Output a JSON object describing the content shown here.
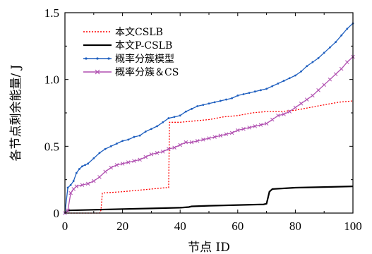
{
  "chart_data": {
    "type": "line",
    "xlabel": "节点 ID",
    "ylabel": "各节点剩余能量/ J",
    "xlim": [
      0,
      100
    ],
    "ylim": [
      0,
      1.5
    ],
    "xticks": [
      0,
      20,
      40,
      60,
      80,
      100
    ],
    "yticks": [
      0,
      0.5,
      1.0,
      1.5
    ],
    "xtick_labels": [
      "0",
      "20",
      "40",
      "60",
      "80",
      "100"
    ],
    "ytick_labels": [
      "0",
      "0.5",
      "1.0",
      "1.5"
    ],
    "legend_position": "top-left",
    "series": [
      {
        "name": "本文CSLB",
        "color": "#ff0000",
        "dash": "2,2",
        "marker": "none",
        "points": [
          [
            0,
            0
          ],
          [
            12,
            0
          ],
          [
            12.5,
            0.02
          ],
          [
            13,
            0.15
          ],
          [
            20,
            0.16
          ],
          [
            25,
            0.17
          ],
          [
            30,
            0.18
          ],
          [
            35,
            0.19
          ],
          [
            36,
            0.19
          ],
          [
            36.3,
            0.68
          ],
          [
            40,
            0.68
          ],
          [
            45,
            0.69
          ],
          [
            50,
            0.7
          ],
          [
            55,
            0.72
          ],
          [
            60,
            0.73
          ],
          [
            65,
            0.75
          ],
          [
            70,
            0.76
          ],
          [
            75,
            0.76
          ],
          [
            80,
            0.77
          ],
          [
            85,
            0.79
          ],
          [
            90,
            0.81
          ],
          [
            95,
            0.83
          ],
          [
            100,
            0.84
          ]
        ]
      },
      {
        "name": "本文P-CSLB",
        "color": "#000000",
        "dash": "",
        "marker": "none",
        "points": [
          [
            0,
            0
          ],
          [
            1,
            0.02
          ],
          [
            10,
            0.025
          ],
          [
            20,
            0.03
          ],
          [
            30,
            0.035
          ],
          [
            40,
            0.04
          ],
          [
            43,
            0.045
          ],
          [
            44,
            0.05
          ],
          [
            50,
            0.055
          ],
          [
            60,
            0.06
          ],
          [
            69,
            0.065
          ],
          [
            70,
            0.07
          ],
          [
            71,
            0.16
          ],
          [
            72,
            0.18
          ],
          [
            80,
            0.19
          ],
          [
            90,
            0.195
          ],
          [
            100,
            0.2
          ]
        ]
      },
      {
        "name": "概率分簇模型",
        "color": "#1f5fbf",
        "dash": "",
        "marker": "dot",
        "points": [
          [
            0,
            0
          ],
          [
            1,
            0.19
          ],
          [
            2,
            0.21
          ],
          [
            3,
            0.24
          ],
          [
            4,
            0.3
          ],
          [
            5,
            0.33
          ],
          [
            6,
            0.35
          ],
          [
            7,
            0.36
          ],
          [
            8,
            0.37
          ],
          [
            10,
            0.41
          ],
          [
            12,
            0.45
          ],
          [
            14,
            0.48
          ],
          [
            16,
            0.5
          ],
          [
            18,
            0.52
          ],
          [
            20,
            0.54
          ],
          [
            22,
            0.55
          ],
          [
            24,
            0.57
          ],
          [
            26,
            0.58
          ],
          [
            28,
            0.61
          ],
          [
            30,
            0.63
          ],
          [
            32,
            0.65
          ],
          [
            34,
            0.68
          ],
          [
            36,
            0.71
          ],
          [
            38,
            0.72
          ],
          [
            40,
            0.73
          ],
          [
            42,
            0.76
          ],
          [
            44,
            0.78
          ],
          [
            46,
            0.8
          ],
          [
            48,
            0.81
          ],
          [
            50,
            0.82
          ],
          [
            52,
            0.83
          ],
          [
            54,
            0.84
          ],
          [
            56,
            0.85
          ],
          [
            58,
            0.86
          ],
          [
            60,
            0.88
          ],
          [
            62,
            0.89
          ],
          [
            64,
            0.9
          ],
          [
            66,
            0.91
          ],
          [
            68,
            0.92
          ],
          [
            70,
            0.93
          ],
          [
            72,
            0.95
          ],
          [
            74,
            0.97
          ],
          [
            76,
            0.99
          ],
          [
            78,
            1.01
          ],
          [
            80,
            1.03
          ],
          [
            82,
            1.06
          ],
          [
            84,
            1.1
          ],
          [
            86,
            1.13
          ],
          [
            88,
            1.16
          ],
          [
            90,
            1.2
          ],
          [
            92,
            1.24
          ],
          [
            94,
            1.28
          ],
          [
            96,
            1.33
          ],
          [
            98,
            1.38
          ],
          [
            100,
            1.42
          ]
        ]
      },
      {
        "name": "概率分簇＆CS",
        "color": "#b04fb0",
        "dash": "",
        "marker": "x",
        "points": [
          [
            0,
            0
          ],
          [
            1,
            0.02
          ],
          [
            2,
            0.15
          ],
          [
            3,
            0.18
          ],
          [
            4,
            0.2
          ],
          [
            6,
            0.21
          ],
          [
            8,
            0.22
          ],
          [
            10,
            0.24
          ],
          [
            12,
            0.27
          ],
          [
            14,
            0.31
          ],
          [
            16,
            0.34
          ],
          [
            18,
            0.36
          ],
          [
            20,
            0.37
          ],
          [
            22,
            0.38
          ],
          [
            24,
            0.39
          ],
          [
            26,
            0.4
          ],
          [
            28,
            0.42
          ],
          [
            30,
            0.44
          ],
          [
            32,
            0.45
          ],
          [
            34,
            0.46
          ],
          [
            36,
            0.48
          ],
          [
            38,
            0.49
          ],
          [
            40,
            0.51
          ],
          [
            42,
            0.53
          ],
          [
            44,
            0.53
          ],
          [
            46,
            0.54
          ],
          [
            48,
            0.55
          ],
          [
            50,
            0.56
          ],
          [
            52,
            0.57
          ],
          [
            54,
            0.58
          ],
          [
            56,
            0.59
          ],
          [
            58,
            0.6
          ],
          [
            60,
            0.62
          ],
          [
            62,
            0.63
          ],
          [
            64,
            0.64
          ],
          [
            66,
            0.65
          ],
          [
            68,
            0.66
          ],
          [
            70,
            0.67
          ],
          [
            72,
            0.7
          ],
          [
            74,
            0.73
          ],
          [
            76,
            0.74
          ],
          [
            78,
            0.76
          ],
          [
            80,
            0.79
          ],
          [
            82,
            0.82
          ],
          [
            84,
            0.85
          ],
          [
            86,
            0.88
          ],
          [
            88,
            0.92
          ],
          [
            90,
            0.96
          ],
          [
            92,
            1.0
          ],
          [
            94,
            1.04
          ],
          [
            96,
            1.08
          ],
          [
            98,
            1.13
          ],
          [
            100,
            1.17
          ]
        ]
      }
    ]
  }
}
